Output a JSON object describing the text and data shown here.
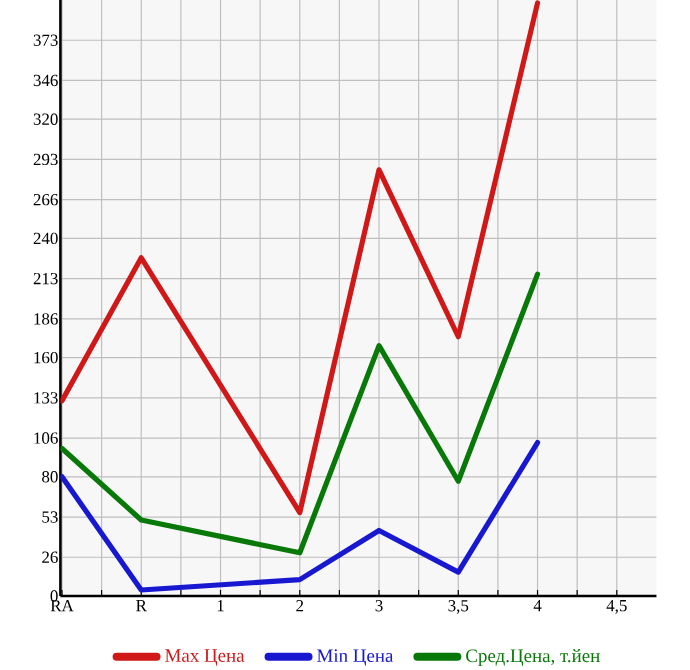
{
  "chart_data": {
    "type": "line",
    "categories": [
      "RA",
      "R",
      "1",
      "2",
      "3",
      "3,5",
      "4",
      "4,5"
    ],
    "series": [
      {
        "name": "Max Цена",
        "color": "#d01818",
        "values": [
          131,
          227,
          null,
          56,
          286,
          174,
          398,
          null
        ]
      },
      {
        "name": "Min Цена",
        "color": "#1818d0",
        "values": [
          80,
          4,
          null,
          11,
          44,
          16,
          103,
          null
        ]
      },
      {
        "name": "Сред.Цена, т.йен",
        "color": "#087808",
        "values": [
          99,
          51,
          null,
          29,
          168,
          77,
          216,
          null
        ]
      }
    ],
    "ylim": [
      0,
      400
    ],
    "yticks": [
      0,
      26,
      53,
      80,
      106,
      133,
      160,
      186,
      213,
      240,
      266,
      293,
      320,
      346,
      373
    ],
    "grid": true,
    "legend": "bottom",
    "marker": "none",
    "line_style": "solid"
  }
}
